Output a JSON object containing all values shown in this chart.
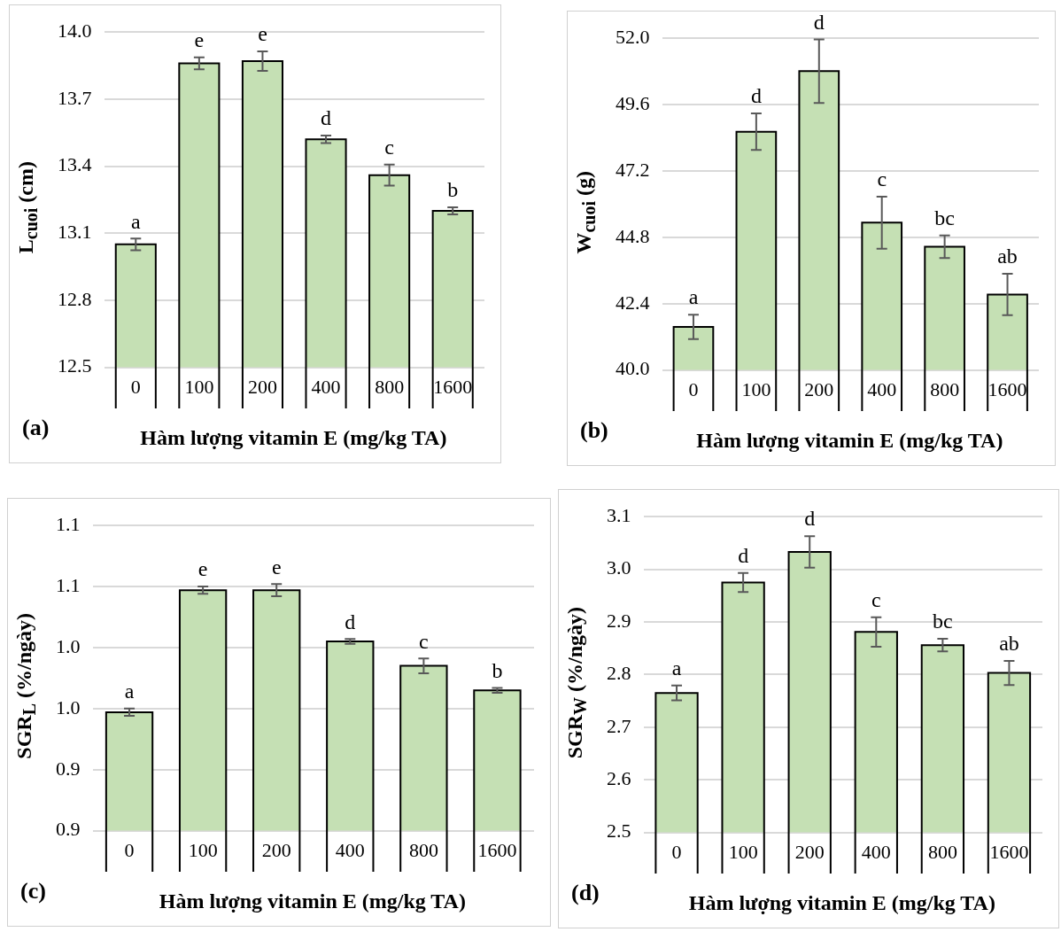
{
  "chart_data": [
    {
      "type": "bar",
      "categories": [
        "0",
        "100",
        "200",
        "400",
        "800",
        "1600"
      ],
      "values": [
        13.05,
        13.86,
        13.87,
        13.52,
        13.36,
        13.2
      ],
      "errors": [
        0.026,
        0.027,
        0.044,
        0.017,
        0.047,
        0.016
      ],
      "color": "#c5e0b4",
      "ylim": [
        12.5,
        14.0
      ],
      "yticks": [
        12.5,
        12.8,
        13.1,
        13.4,
        13.7,
        {
          "value": 14,
          "label": "14.0"
        }
      ],
      "grid": "y",
      "xlabel": "Hàm lượng vitamin E (mg/kg TA)",
      "ylabel": "L$_{cuoi}$ (cm)",
      "annotations": [
        "(a)",
        {
          "text": "a",
          "x": "0",
          "y": 13.076
        },
        {
          "text": "e",
          "x": "100",
          "y": 13.887
        },
        {
          "text": "e",
          "x": "200",
          "y": 13.914
        },
        {
          "text": "d",
          "x": "400",
          "y": 13.537
        },
        {
          "text": "c",
          "x": "800",
          "y": 13.407
        },
        {
          "text": "b",
          "x": "1600",
          "y": 13.216
        }
      ]
    },
    {
      "type": "bar",
      "categories": [
        "0",
        "100",
        "200",
        "400",
        "800",
        "1600"
      ],
      "values": [
        41.56,
        48.62,
        50.81,
        45.33,
        44.46,
        42.73
      ],
      "errors": [
        0.44,
        0.66,
        1.15,
        0.94,
        0.41,
        0.75
      ],
      "color": "#c5e0b4",
      "ylim": [
        40.0,
        52.0
      ],
      "yticks": [
        {
          "value": 40,
          "label": "40.0"
        },
        42.4,
        44.8,
        47.2,
        49.6,
        {
          "value": 52,
          "label": "52.0"
        }
      ],
      "grid": "y",
      "xlabel": "Hàm lượng vitamin E (mg/kg TA)",
      "ylabel": "W$_{cuoi}$ (g)",
      "annotations": [
        "(b)",
        {
          "text": "a",
          "x": "0",
          "y": 42.0
        },
        {
          "text": "d",
          "x": "100",
          "y": 49.28
        },
        {
          "text": "d",
          "x": "200",
          "y": 51.96
        },
        {
          "text": "c",
          "x": "400",
          "y": 46.27
        },
        {
          "text": "bc",
          "x": "800",
          "y": 44.87
        },
        {
          "text": "ab",
          "x": "1600",
          "y": 43.48
        }
      ]
    },
    {
      "type": "bar",
      "categories": [
        "0",
        "100",
        "200",
        "400",
        "800",
        "1600"
      ],
      "values": [
        0.947,
        1.047,
        1.047,
        1.005,
        0.985,
        0.965
      ],
      "errors": [
        0.003,
        0.003,
        0.005,
        0.002,
        0.006,
        0.002
      ],
      "color": "#c5e0b4",
      "ylim": [
        0.85,
        1.1
      ],
      "yticks": [
        {
          "value": 0.85,
          "label": "0.9"
        },
        {
          "value": 0.9,
          "label": "0.9"
        },
        {
          "value": 0.95,
          "label": "1.0"
        },
        {
          "value": 1.0,
          "label": "1.0"
        },
        {
          "value": 1.05,
          "label": "1.1"
        },
        {
          "value": 1.1,
          "label": "1.1"
        }
      ],
      "grid": "y",
      "xlabel": "Hàm lượng vitamin E (mg/kg TA)",
      "ylabel": "SGR$_{L}$ (%/ngày)",
      "annotations": [
        "(c)",
        {
          "text": "a",
          "x": "0",
          "y": 0.95
        },
        {
          "text": "e",
          "x": "100",
          "y": 1.05
        },
        {
          "text": "e",
          "x": "200",
          "y": 1.052
        },
        {
          "text": "d",
          "x": "400",
          "y": 1.007
        },
        {
          "text": "c",
          "x": "800",
          "y": 0.991
        },
        {
          "text": "b",
          "x": "1600",
          "y": 0.967
        }
      ]
    },
    {
      "type": "bar",
      "categories": [
        "0",
        "100",
        "200",
        "400",
        "800",
        "1600"
      ],
      "values": [
        2.765,
        2.975,
        3.033,
        2.881,
        2.856,
        2.803
      ],
      "errors": [
        0.014,
        0.018,
        0.03,
        0.028,
        0.012,
        0.023
      ],
      "color": "#c5e0b4",
      "ylim": [
        2.5,
        3.1
      ],
      "yticks": [
        2.5,
        2.6,
        2.7,
        2.8,
        2.9,
        {
          "value": 3,
          "label": "3.0"
        },
        3.1
      ],
      "grid": "y",
      "xlabel": "Hàm lượng vitamin E (mg/kg TA)",
      "ylabel": "SGR$_{W}$ (%/ngày)",
      "annotations": [
        "(d)",
        {
          "text": "a",
          "x": "0",
          "y": 2.779
        },
        {
          "text": "d",
          "x": "100",
          "y": 2.993
        },
        {
          "text": "d",
          "x": "200",
          "y": 3.063
        },
        {
          "text": "c",
          "x": "400",
          "y": 2.909
        },
        {
          "text": "bc",
          "x": "800",
          "y": 2.868
        },
        {
          "text": "ab",
          "x": "1600",
          "y": 2.826
        }
      ]
    }
  ]
}
